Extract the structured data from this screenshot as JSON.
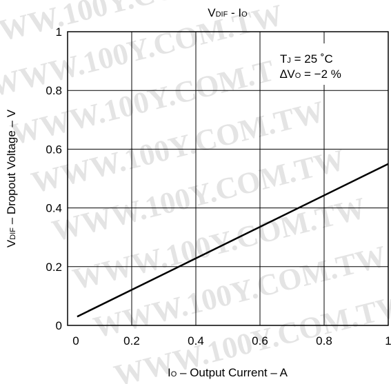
{
  "chart_data": {
    "type": "line",
    "title": {
      "main": "V",
      "sub": "DIF",
      "rest": " - I",
      "sub2": "O"
    },
    "annotation": {
      "line1": {
        "a": "T",
        "sub": "J",
        "b": " = 25 ˚C"
      },
      "line2": {
        "a": "∆V",
        "sub": "O",
        "b": " = −2 %"
      }
    },
    "xlabel": {
      "a": "I",
      "sub": "O",
      "b": " – Output Current – A"
    },
    "ylabel": {
      "a": "V",
      "sub": "DIF",
      "b": " – Dropout Voltage – V"
    },
    "xlim": [
      0,
      1
    ],
    "ylim": [
      0,
      1
    ],
    "x_ticks": [
      "0",
      "0.2",
      "0.4",
      "0.6",
      "0.8",
      "1"
    ],
    "y_ticks": [
      "0",
      "0.2",
      "0.4",
      "0.6",
      "0.8",
      "1"
    ],
    "grid": true,
    "series": [
      {
        "x": [
          0.03,
          1.0
        ],
        "y": [
          0.03,
          0.55
        ],
        "color": "#000000"
      }
    ],
    "watermark": "WWW.100Y.COM.TW"
  }
}
